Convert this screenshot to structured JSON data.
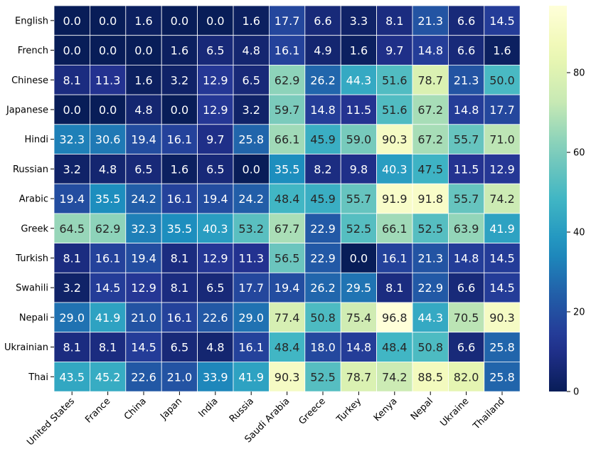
{
  "chart_data": {
    "type": "heatmap",
    "title": "",
    "xlabel": "",
    "ylabel": "",
    "rows": [
      "English",
      "French",
      "Chinese",
      "Japanese",
      "Hindi",
      "Russian",
      "Arabic",
      "Greek",
      "Turkish",
      "Swahili",
      "Nepali",
      "Ukrainian",
      "Thai"
    ],
    "columns": [
      "United States",
      "France",
      "China",
      "Japan",
      "India",
      "Russia",
      "Saudi Arabia",
      "Greece",
      "Turkey",
      "Kenya",
      "Nepal",
      "Ukraine",
      "Thailand"
    ],
    "values": [
      [
        0.0,
        0.0,
        1.6,
        0.0,
        0.0,
        1.6,
        17.7,
        6.6,
        3.3,
        8.1,
        21.3,
        6.6,
        14.5
      ],
      [
        0.0,
        0.0,
        0.0,
        1.6,
        6.5,
        4.8,
        16.1,
        4.9,
        1.6,
        9.7,
        14.8,
        6.6,
        1.6
      ],
      [
        8.1,
        11.3,
        1.6,
        3.2,
        12.9,
        6.5,
        62.9,
        26.2,
        44.3,
        51.6,
        78.7,
        21.3,
        50.0
      ],
      [
        0.0,
        0.0,
        4.8,
        0.0,
        12.9,
        3.2,
        59.7,
        14.8,
        11.5,
        51.6,
        67.2,
        14.8,
        17.7
      ],
      [
        32.3,
        30.6,
        19.4,
        16.1,
        9.7,
        25.8,
        66.1,
        45.9,
        59.0,
        90.3,
        67.2,
        55.7,
        71.0
      ],
      [
        3.2,
        4.8,
        6.5,
        1.6,
        6.5,
        0.0,
        35.5,
        8.2,
        9.8,
        40.3,
        47.5,
        11.5,
        12.9
      ],
      [
        19.4,
        35.5,
        24.2,
        16.1,
        19.4,
        24.2,
        48.4,
        45.9,
        55.7,
        91.9,
        91.8,
        55.7,
        74.2
      ],
      [
        64.5,
        62.9,
        32.3,
        35.5,
        40.3,
        53.2,
        67.7,
        22.9,
        52.5,
        66.1,
        52.5,
        63.9,
        41.9
      ],
      [
        8.1,
        16.1,
        19.4,
        8.1,
        12.9,
        11.3,
        56.5,
        22.9,
        0.0,
        16.1,
        21.3,
        14.8,
        14.5
      ],
      [
        3.2,
        14.5,
        12.9,
        8.1,
        6.5,
        17.7,
        19.4,
        26.2,
        29.5,
        8.1,
        22.9,
        6.6,
        14.5
      ],
      [
        29.0,
        41.9,
        21.0,
        16.1,
        22.6,
        29.0,
        77.4,
        50.8,
        75.4,
        96.8,
        44.3,
        70.5,
        90.3
      ],
      [
        8.1,
        8.1,
        14.5,
        6.5,
        4.8,
        16.1,
        48.4,
        18.0,
        14.8,
        48.4,
        50.8,
        6.6,
        25.8
      ],
      [
        43.5,
        45.2,
        22.6,
        21.0,
        33.9,
        41.9,
        90.3,
        52.5,
        78.7,
        74.2,
        88.5,
        82.0,
        25.8
      ]
    ],
    "value_range": [
      0,
      96.8
    ],
    "colormap": "YlGnBu",
    "colorbar": {
      "ticks": [
        0,
        20,
        40,
        60,
        80
      ]
    },
    "annotations": "cell values shown with one decimal"
  }
}
